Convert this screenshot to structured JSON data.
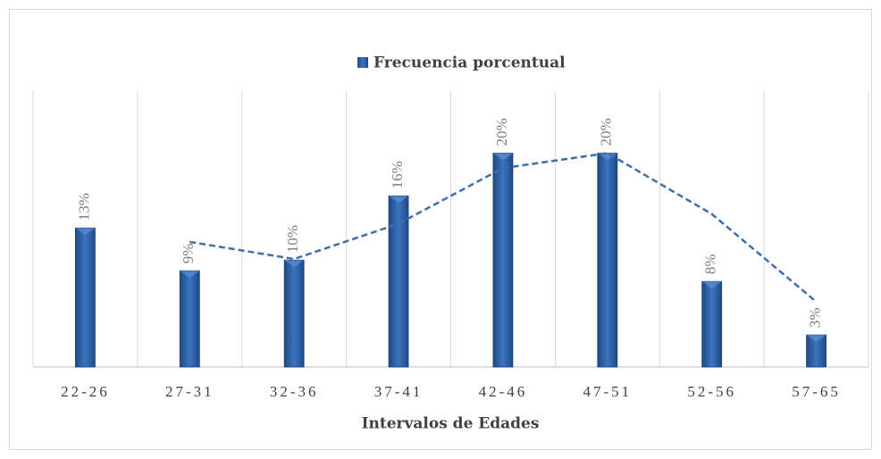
{
  "chart_data": {
    "type": "bar",
    "legend": "Frecuencia porcentual",
    "x_label": "Intervalos de Edades",
    "categories": [
      "22-26",
      "27-31",
      "32-36",
      "37-41",
      "42-46",
      "47-51",
      "52-56",
      "57-65"
    ],
    "series": [
      {
        "name": "Frecuencia porcentual",
        "color": "#2f62a6",
        "values": [
          13,
          9,
          10,
          16,
          20,
          20,
          8,
          3
        ],
        "value_labels": [
          "13%",
          "9%",
          "10%",
          "16%",
          "20%",
          "20%",
          "8%",
          "3%"
        ]
      }
    ],
    "trendline": {
      "color": "#3d6fb0",
      "values": [
        null,
        11.7,
        10.1,
        13.4,
        18.6,
        20,
        14.3,
        6.1
      ]
    },
    "ylim": [
      0,
      25.8
    ],
    "grid": true
  }
}
